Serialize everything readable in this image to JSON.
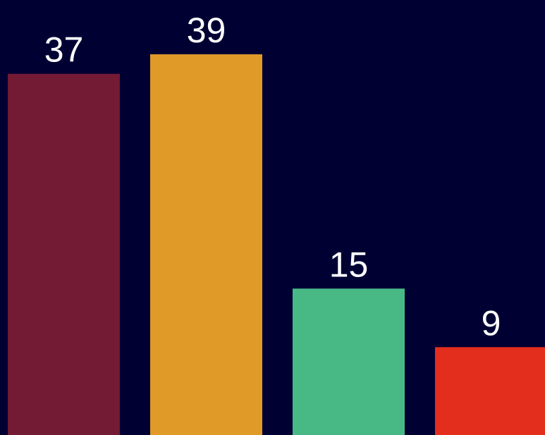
{
  "chart_data": {
    "type": "bar",
    "values": [
      37,
      39,
      15,
      9
    ],
    "bar_colors": [
      "#731A35",
      "#E09A28",
      "#48B985",
      "#E32D1D"
    ],
    "background_color": "#000033",
    "label_color": "#ffffff",
    "data_labels": [
      "37",
      "39",
      "15",
      "9"
    ],
    "grid": false,
    "legend": "none"
  }
}
